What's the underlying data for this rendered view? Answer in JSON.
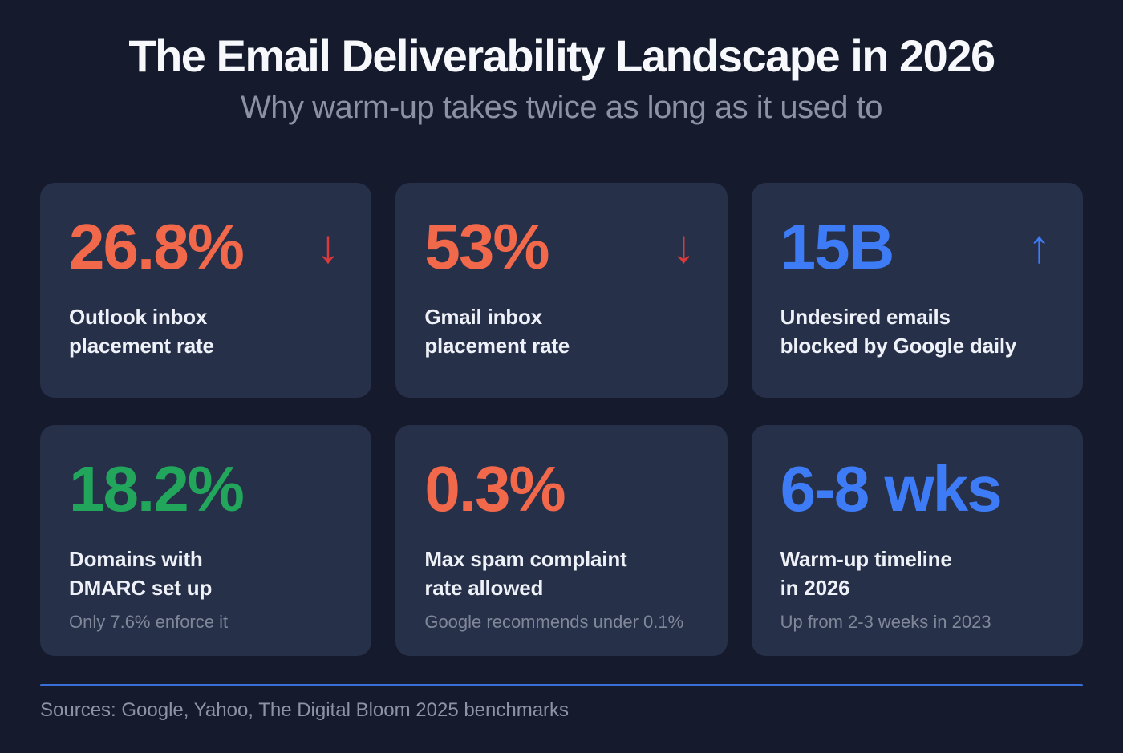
{
  "page": {
    "title": "The Email Deliverability Landscape in 2026",
    "subtitle": "Why warm-up takes twice as long as it used to",
    "sources": "Sources: Google, Yahoo, The Digital Bloom 2025 benchmarks"
  },
  "colors": {
    "background": "#151b2d",
    "card": "#273049",
    "orange": "#f2684b",
    "red": "#da3a3c",
    "blue": "#3d7cf6",
    "green": "#21a65c",
    "white": "#eef1f7",
    "gray": "#7f8799",
    "divider": "#3a6fd8"
  },
  "cards": [
    {
      "value": "26.8%",
      "value_color": "orange",
      "arrow_glyph": "↓",
      "arrow_color": "red",
      "label": "Outlook inbox\nplacement rate"
    },
    {
      "value": "53%",
      "value_color": "orange",
      "arrow_glyph": "↓",
      "arrow_color": "red",
      "label": "Gmail inbox\nplacement rate"
    },
    {
      "value": "15B",
      "value_color": "blue",
      "arrow_glyph": "↑",
      "arrow_color": "blue",
      "label": "Undesired emails\nblocked by Google daily"
    },
    {
      "value": "18.2%",
      "value_color": "green",
      "label": "Domains with\nDMARC set up",
      "sub": "Only 7.6% enforce it"
    },
    {
      "value": "0.3%",
      "value_color": "orange",
      "label": "Max spam complaint\nrate allowed",
      "sub": "Google recommends under 0.1%"
    },
    {
      "value": "6-8 wks",
      "value_color": "blue",
      "label": "Warm-up timeline\nin 2026",
      "sub": "Up from 2-3 weeks in 2023"
    }
  ],
  "chart_data": {
    "type": "table",
    "title": "The Email Deliverability Landscape in 2026",
    "subtitle": "Why warm-up takes twice as long as it used to",
    "stats": [
      {
        "label": "Outlook inbox placement rate",
        "value": "26.8%",
        "trend": "down"
      },
      {
        "label": "Gmail inbox placement rate",
        "value": "53%",
        "trend": "down"
      },
      {
        "label": "Undesired emails blocked by Google daily",
        "value": "15B",
        "trend": "up"
      },
      {
        "label": "Domains with DMARC set up",
        "value": "18.2%",
        "note": "Only 7.6% enforce it"
      },
      {
        "label": "Max spam complaint rate allowed",
        "value": "0.3%",
        "note": "Google recommends under 0.1%"
      },
      {
        "label": "Warm-up timeline in 2026",
        "value": "6-8 wks",
        "note": "Up from 2-3 weeks in 2023"
      }
    ],
    "source": "Sources: Google, Yahoo, The Digital Bloom 2025 benchmarks"
  }
}
